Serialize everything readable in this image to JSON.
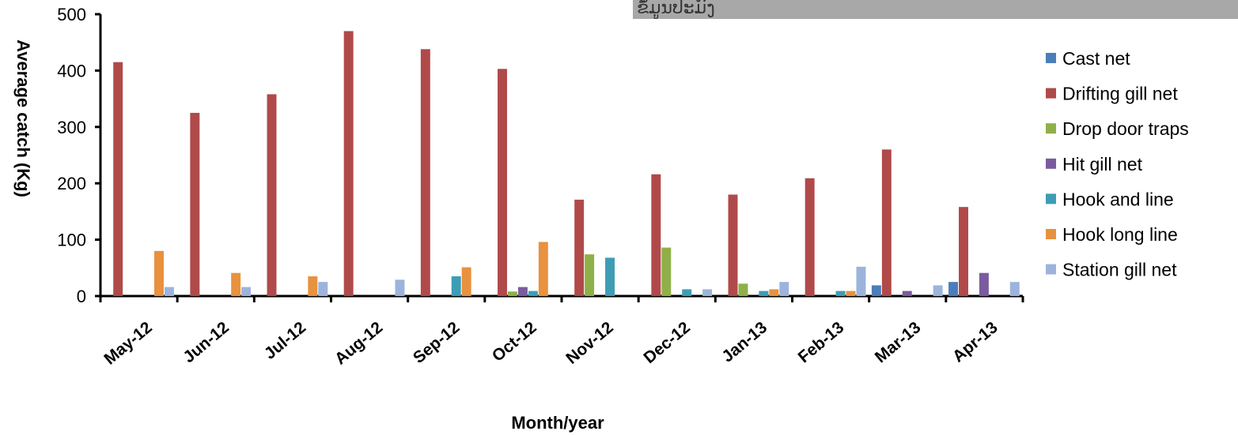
{
  "chart_data": {
    "type": "bar",
    "xlabel": "Month/year",
    "ylabel": "Average catch (Kg)",
    "ylim": [
      0,
      500
    ],
    "yticks": [
      0,
      100,
      200,
      300,
      400,
      500
    ],
    "grid": false,
    "legend_position": "right",
    "top_banner_text": "ຂໍ້ມູນປະມົງ",
    "categories": [
      "May-12",
      "Jun-12",
      "Jul-12",
      "Aug-12",
      "Sep-12",
      "Oct-12",
      "Nov-12",
      "Dec-12",
      "Jan-13",
      "Feb-13",
      "Mar-13",
      "Apr-13"
    ],
    "series": [
      {
        "name": "Cast net",
        "color": "#4a7ebb",
        "values": [
          0,
          0,
          0,
          0,
          0,
          0,
          0,
          0,
          0,
          0,
          19,
          25
        ]
      },
      {
        "name": "Drifting gill net",
        "color": "#b04a4a",
        "values": [
          415,
          325,
          358,
          470,
          438,
          403,
          171,
          216,
          180,
          209,
          260,
          158
        ]
      },
      {
        "name": "Drop door traps",
        "color": "#8fb048",
        "values": [
          0,
          0,
          0,
          0,
          0,
          8,
          74,
          86,
          22,
          0,
          0,
          0
        ]
      },
      {
        "name": "Hit gill net",
        "color": "#7a5c9e",
        "values": [
          0,
          0,
          0,
          0,
          0,
          16,
          0,
          0,
          0,
          0,
          9,
          41
        ]
      },
      {
        "name": "Hook and line",
        "color": "#3c9db5",
        "values": [
          0,
          0,
          0,
          0,
          35,
          9,
          68,
          12,
          9,
          9,
          0,
          0
        ]
      },
      {
        "name": "Hook long line",
        "color": "#e8913e",
        "values": [
          80,
          41,
          35,
          0,
          51,
          96,
          0,
          0,
          12,
          9,
          0,
          0
        ]
      },
      {
        "name": "Station gill net",
        "color": "#9cb4dc",
        "values": [
          16,
          16,
          25,
          29,
          0,
          0,
          0,
          12,
          25,
          52,
          19,
          25
        ]
      }
    ]
  }
}
